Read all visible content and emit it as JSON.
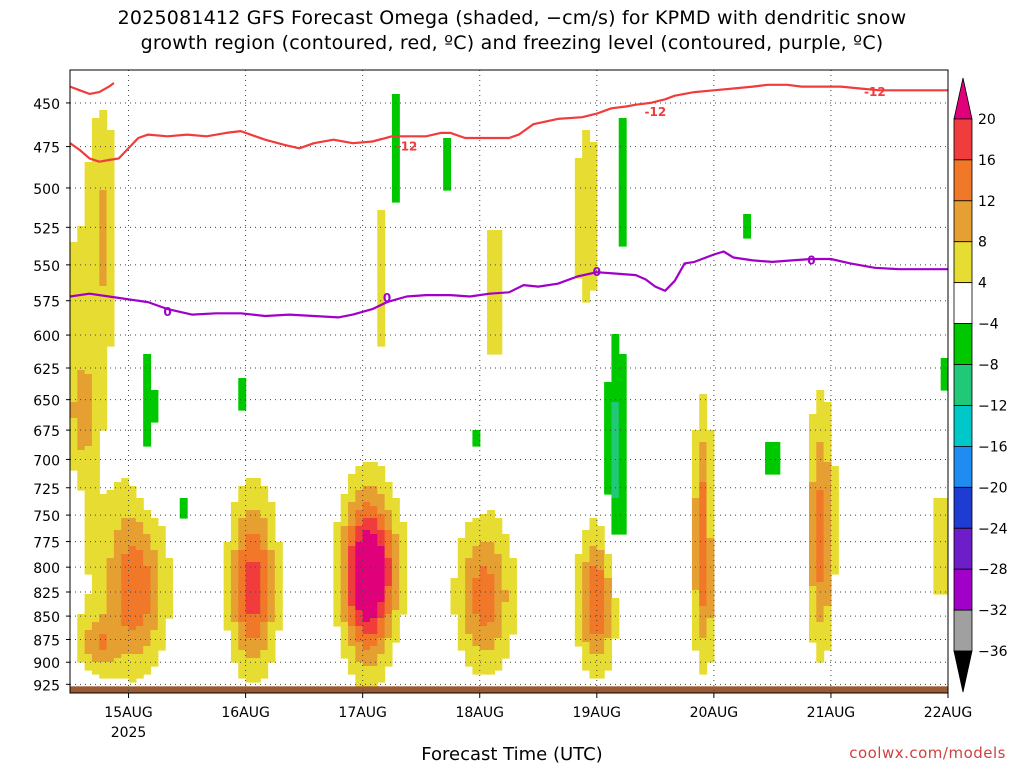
{
  "title": {
    "line1": "2025081412 GFS Forecast Omega (shaded, −cm/s) for KPMD with dendritic snow",
    "line2": "growth region (contoured, red, ºC) and freezing level (contoured, purple, ºC)"
  },
  "footer": {
    "xlabel": "Forecast Time (UTC)",
    "credit": "coolwx.com/models"
  },
  "chart_data": {
    "type": "heatmap",
    "title": "2025081412 GFS Forecast Omega (shaded, −cm/s) for KPMD with dendritic snow growth region (contoured, red, ºC) and freezing level (contoured, purple, ºC)",
    "xlabel": "Forecast Time (UTC)",
    "ylabel": "",
    "x_ticks": [
      "15AUG",
      "16AUG",
      "17AUG",
      "18AUG",
      "19AUG",
      "20AUG",
      "21AUG",
      "22AUG"
    ],
    "x_tick_hours": [
      12,
      36,
      60,
      84,
      108,
      132,
      156,
      180
    ],
    "x_year_label": "2025",
    "xlim_hours": [
      0,
      180
    ],
    "y_ticks": [
      450,
      475,
      500,
      525,
      550,
      575,
      600,
      625,
      650,
      675,
      700,
      725,
      750,
      775,
      800,
      825,
      850,
      875,
      900,
      925
    ],
    "ylim_hpa": [
      432,
      935
    ],
    "grid": true,
    "colorbar": {
      "labels": [
        "20",
        "16",
        "12",
        "8",
        "4",
        "−4",
        "−8",
        "−12",
        "−16",
        "−20",
        "−24",
        "−28",
        "−32",
        "−36"
      ],
      "bins": [
        {
          "range": [
            20,
            99
          ],
          "color": "#e0007a"
        },
        {
          "range": [
            16,
            20
          ],
          "color": "#f03c3c"
        },
        {
          "range": [
            12,
            16
          ],
          "color": "#f07828"
        },
        {
          "range": [
            8,
            12
          ],
          "color": "#e6a032"
        },
        {
          "range": [
            4,
            8
          ],
          "color": "#e6dc32"
        },
        {
          "range": [
            -4,
            4
          ],
          "color": "#ffffff"
        },
        {
          "range": [
            -8,
            -4
          ],
          "color": "#00c800"
        },
        {
          "range": [
            -12,
            -8
          ],
          "color": "#20c878"
        },
        {
          "range": [
            -16,
            -12
          ],
          "color": "#00c8c8"
        },
        {
          "range": [
            -20,
            -16
          ],
          "color": "#1e8cf0"
        },
        {
          "range": [
            -24,
            -20
          ],
          "color": "#1e3cd2"
        },
        {
          "range": [
            -28,
            -24
          ],
          "color": "#6e1ec8"
        },
        {
          "range": [
            -32,
            -28
          ],
          "color": "#a000c8"
        },
        {
          "range": [
            -36,
            -32
          ],
          "color": "#a0a0a0"
        },
        {
          "range": [
            -99,
            -36
          ],
          "color": "#000000"
        }
      ]
    },
    "series": [
      {
        "name": "-12",
        "color": "#f03c3c",
        "label_positions": [
          [
            69,
            475
          ],
          [
            120,
            455
          ],
          [
            165,
            444
          ]
        ],
        "points": [
          [
            0,
            473
          ],
          [
            2,
            477
          ],
          [
            4,
            482
          ],
          [
            6,
            484
          ],
          [
            8,
            483
          ],
          [
            10,
            482
          ],
          [
            12,
            476
          ],
          [
            14,
            470
          ],
          [
            16,
            468
          ],
          [
            20,
            469
          ],
          [
            24,
            468
          ],
          [
            28,
            469
          ],
          [
            32,
            467
          ],
          [
            35,
            466
          ],
          [
            38,
            469
          ],
          [
            40,
            471
          ],
          [
            44,
            474
          ],
          [
            47,
            476
          ],
          [
            50,
            473
          ],
          [
            54,
            471
          ],
          [
            58,
            473
          ],
          [
            62,
            472
          ],
          [
            66,
            469
          ],
          [
            70,
            469
          ],
          [
            73,
            469
          ],
          [
            76,
            467
          ],
          [
            78,
            467
          ],
          [
            81,
            470
          ],
          [
            84,
            470
          ],
          [
            87,
            470
          ],
          [
            90,
            470
          ],
          [
            92,
            468
          ],
          [
            95,
            462
          ],
          [
            100,
            459
          ],
          [
            105,
            458
          ],
          [
            108,
            456
          ],
          [
            111,
            453
          ],
          [
            114,
            452
          ],
          [
            116,
            451
          ],
          [
            119,
            450
          ],
          [
            122,
            448
          ],
          [
            124,
            446
          ],
          [
            128,
            444
          ],
          [
            132,
            443
          ],
          [
            136,
            442
          ],
          [
            140,
            441
          ],
          [
            143,
            440
          ],
          [
            147,
            440
          ],
          [
            150,
            441
          ],
          [
            154,
            441
          ],
          [
            158,
            441
          ],
          [
            162,
            442
          ],
          [
            166,
            443
          ],
          [
            170,
            443
          ],
          [
            174,
            443
          ],
          [
            177,
            443
          ],
          [
            180,
            443
          ]
        ]
      },
      {
        "name": "-12 (lower segment)",
        "color": "#f03c3c",
        "points": [
          [
            0,
            441
          ],
          [
            2,
            443
          ],
          [
            4,
            445
          ],
          [
            6,
            444
          ],
          [
            8,
            441
          ],
          [
            9,
            439
          ]
        ]
      },
      {
        "name": "0",
        "color": "#a000c8",
        "label_positions": [
          [
            20,
            583
          ],
          [
            65,
            573
          ],
          [
            108,
            555
          ],
          [
            152,
            547
          ]
        ],
        "points": [
          [
            0,
            572
          ],
          [
            4,
            570
          ],
          [
            8,
            572
          ],
          [
            12,
            574
          ],
          [
            16,
            576
          ],
          [
            20,
            581
          ],
          [
            25,
            585
          ],
          [
            30,
            584
          ],
          [
            35,
            584
          ],
          [
            40,
            586
          ],
          [
            45,
            585
          ],
          [
            50,
            586
          ],
          [
            55,
            587
          ],
          [
            58,
            585
          ],
          [
            62,
            581
          ],
          [
            65,
            576
          ],
          [
            69,
            572
          ],
          [
            73,
            571
          ],
          [
            78,
            571
          ],
          [
            82,
            572
          ],
          [
            86,
            570
          ],
          [
            90,
            569
          ],
          [
            93,
            564
          ],
          [
            96,
            565
          ],
          [
            100,
            563
          ],
          [
            104,
            558
          ],
          [
            108,
            555
          ],
          [
            112,
            556
          ],
          [
            116,
            557
          ],
          [
            118,
            560
          ],
          [
            120,
            565
          ],
          [
            122,
            568
          ],
          [
            124,
            561
          ],
          [
            126,
            549
          ],
          [
            128,
            548
          ],
          [
            132,
            543
          ],
          [
            134,
            541
          ],
          [
            136,
            545
          ],
          [
            140,
            547
          ],
          [
            144,
            548
          ],
          [
            148,
            547
          ],
          [
            152,
            546
          ],
          [
            156,
            546
          ],
          [
            160,
            549
          ],
          [
            165,
            552
          ],
          [
            170,
            553
          ],
          [
            175,
            553
          ],
          [
            180,
            553
          ]
        ]
      }
    ],
    "omega_blobs": [
      {
        "t": 13.5,
        "p": 820,
        "rt": 6.5,
        "rp": 90,
        "value": 15
      },
      {
        "t": 6,
        "p": 880,
        "rt": 4,
        "rp": 30,
        "value": 9
      },
      {
        "t": 7,
        "p": 530,
        "rt": 3,
        "rp": 80,
        "value": 7
      },
      {
        "t": 3,
        "p": 660,
        "rt": 3,
        "rp": 50,
        "value": 6
      },
      {
        "t": 37.5,
        "p": 820,
        "rt": 5,
        "rp": 90,
        "value": 18
      },
      {
        "t": 61,
        "p": 820,
        "rt": 5,
        "rp": 95,
        "value": 18
      },
      {
        "t": 62,
        "p": 800,
        "rt": 7,
        "rp": 65,
        "value": 11
      },
      {
        "t": 85,
        "p": 830,
        "rt": 6,
        "rp": 80,
        "value": 14
      },
      {
        "t": 87,
        "p": 570,
        "rt": 3,
        "rp": 80,
        "value": 6
      },
      {
        "t": 108,
        "p": 835,
        "rt": 4,
        "rp": 75,
        "value": 16
      },
      {
        "t": 106,
        "p": 520,
        "rt": 3,
        "rp": 70,
        "value": 8
      },
      {
        "t": 130,
        "p": 780,
        "rt": 2.5,
        "rp": 120,
        "value": 16
      },
      {
        "t": 154,
        "p": 770,
        "rt": 3,
        "rp": 120,
        "value": 14
      },
      {
        "t": 178.5,
        "p": 780,
        "rt": 1.8,
        "rp": 80,
        "value": 7
      },
      {
        "t": 64,
        "p": 560,
        "rt": 2,
        "rp": 80,
        "value": 6
      },
      {
        "t": -1,
        "p": 650,
        "rt": 10,
        "rp": 280,
        "value": 5
      },
      {
        "t": 0.5,
        "p": 455,
        "rt": 1.2,
        "rp": 40,
        "value": -6
      },
      {
        "t": 0.5,
        "p": 745,
        "rt": 1.5,
        "rp": 35,
        "value": -6
      },
      {
        "t": 16,
        "p": 665,
        "rt": 2.5,
        "rp": 90,
        "value": -6
      },
      {
        "t": 22.5,
        "p": 745,
        "rt": 2,
        "rp": 30,
        "value": -6
      },
      {
        "t": 35,
        "p": 645,
        "rt": 1,
        "rp": 25,
        "value": -6
      },
      {
        "t": 67,
        "p": 480,
        "rt": 1.5,
        "rp": 60,
        "value": -6
      },
      {
        "t": 77,
        "p": 485,
        "rt": 0.8,
        "rp": 30,
        "value": -6
      },
      {
        "t": 84,
        "p": 685,
        "rt": 1.5,
        "rp": 50,
        "value": -6
      },
      {
        "t": 112,
        "p": 700,
        "rt": 2.5,
        "rp": 110,
        "value": -10
      },
      {
        "t": 113,
        "p": 495,
        "rt": 1.5,
        "rp": 60,
        "value": -6
      },
      {
        "t": 138.5,
        "p": 525,
        "rt": 1,
        "rp": 15,
        "value": -6
      },
      {
        "t": 132,
        "p": 740,
        "rt": 1.2,
        "rp": 55,
        "value": -9
      },
      {
        "t": 144,
        "p": 700,
        "rt": 2,
        "rp": 30,
        "value": -6
      },
      {
        "t": 157,
        "p": 827,
        "rt": 1,
        "rp": 15,
        "value": -6
      },
      {
        "t": 179.5,
        "p": 630,
        "rt": 1,
        "rp": 25,
        "value": -6
      }
    ],
    "ground_level_hpa": 925
  }
}
